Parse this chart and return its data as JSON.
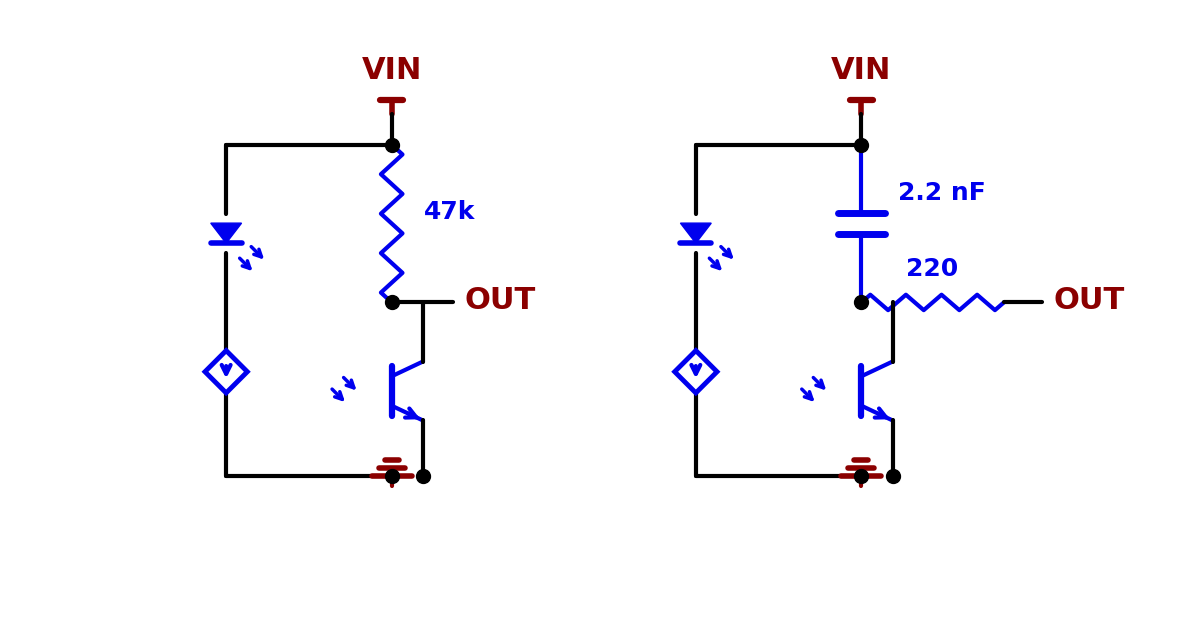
{
  "blue": "#0000EE",
  "dark_red": "#8B0000",
  "black": "#000000",
  "white": "#FFFFFF",
  "lw": 3.0,
  "circuit1": {
    "vin_label": "VIN",
    "resistor_label": "47k",
    "out_label": "OUT"
  },
  "circuit2": {
    "vin_label": "VIN",
    "cap_label": "2.2 nF",
    "res_label": "220",
    "out_label": "OUT"
  }
}
